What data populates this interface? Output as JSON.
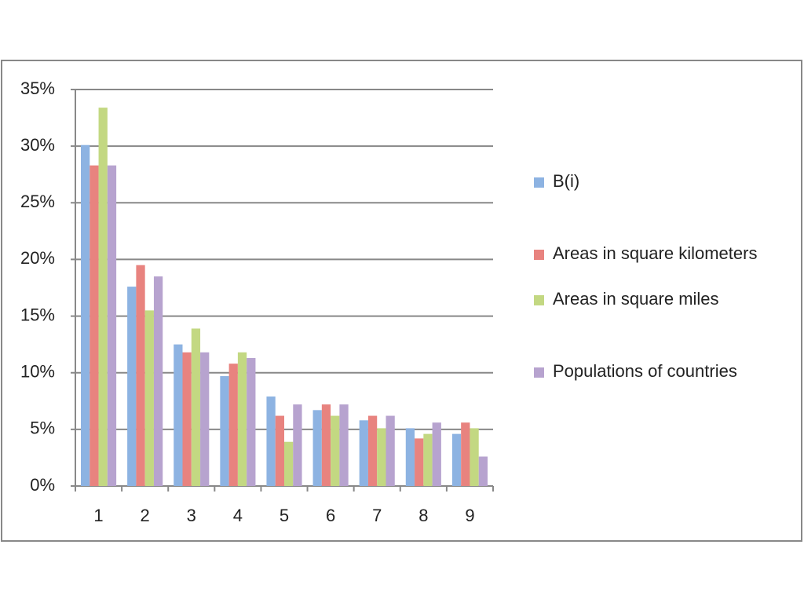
{
  "chart_data": {
    "type": "bar",
    "categories": [
      "1",
      "2",
      "3",
      "4",
      "5",
      "6",
      "7",
      "8",
      "9"
    ],
    "series": [
      {
        "name": "B(i)",
        "color": "#8db3e2",
        "values": [
          30.1,
          17.6,
          12.5,
          9.7,
          7.9,
          6.7,
          5.8,
          5.1,
          4.6
        ]
      },
      {
        "name": "Areas in square kilometers",
        "color": "#e8837f",
        "values": [
          28.3,
          19.5,
          11.8,
          10.8,
          6.2,
          7.2,
          6.2,
          4.2,
          5.6
        ]
      },
      {
        "name": "Areas in square miles",
        "color": "#c3d882",
        "values": [
          33.4,
          15.5,
          13.9,
          11.8,
          3.9,
          6.2,
          5.1,
          4.6,
          5.1
        ]
      },
      {
        "name": "Populations of countries",
        "color": "#b7a3cf",
        "values": [
          28.3,
          18.5,
          11.8,
          11.3,
          7.2,
          7.2,
          6.2,
          5.6,
          2.6
        ]
      }
    ],
    "ylim": [
      0,
      35
    ],
    "yticks": [
      {
        "value": 0,
        "label": "0%"
      },
      {
        "value": 5,
        "label": "5%"
      },
      {
        "value": 10,
        "label": "10%"
      },
      {
        "value": 15,
        "label": "15%"
      },
      {
        "value": 20,
        "label": "20%"
      },
      {
        "value": 25,
        "label": "25%"
      },
      {
        "value": 30,
        "label": "30%"
      },
      {
        "value": 35,
        "label": "35%"
      }
    ],
    "grid": true,
    "legend": "right"
  }
}
